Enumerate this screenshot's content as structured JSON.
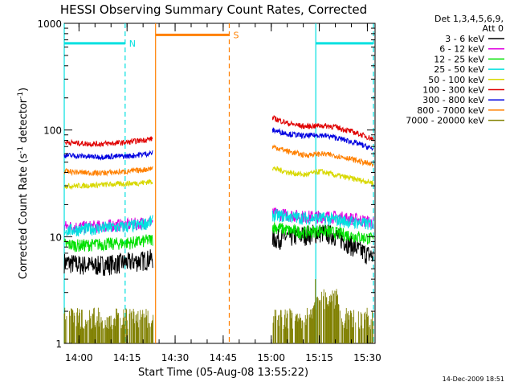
{
  "chart_data": {
    "type": "line",
    "title": "HESSI Observing Summary Count Rates, Corrected",
    "xlabel": "Start Time (05-Aug-08 13:55:22)",
    "ylabel_main": "Corrected Count Rate (s",
    "ylabel_sup1": "-1",
    "ylabel_mid": " detector",
    "ylabel_sup2": "-1",
    "ylabel_end": ")",
    "yscale": "log",
    "ylim": [
      1,
      1000
    ],
    "xlim_minutes": [
      0,
      97
    ],
    "x_ticks": [
      {
        "label": "14:00",
        "minute": 4.6
      },
      {
        "label": "14:15",
        "minute": 19.6
      },
      {
        "label": "14:30",
        "minute": 34.6
      },
      {
        "label": "14:45",
        "minute": 49.6
      },
      {
        "label": "15:00",
        "minute": 64.6
      },
      {
        "label": "15:15",
        "minute": 79.6
      },
      {
        "label": "15:30",
        "minute": 94.6
      }
    ],
    "y_ticks": [
      {
        "label": "1",
        "value": 1
      },
      {
        "label": "10",
        "value": 10
      },
      {
        "label": "100",
        "value": 100
      },
      {
        "label": "1000",
        "value": 1000
      }
    ],
    "legend_header": [
      "Det 1,3,4,5,6,9,",
      "Att 0"
    ],
    "legend_position": "right",
    "series": [
      {
        "name": "3 - 6 keV",
        "color": "#000000",
        "x": [
          0,
          5,
          10,
          15,
          20,
          24,
          27.5,
          65,
          70,
          75,
          80,
          84,
          88,
          92,
          96.5
        ],
        "y": [
          5.8,
          5.5,
          5.4,
          5.6,
          5.8,
          6.0,
          6.3,
          9.5,
          10.0,
          10.5,
          11.0,
          10.5,
          9.0,
          7.5,
          6.5
        ]
      },
      {
        "name": "6 - 12 keV",
        "color": "#e000e0",
        "x": [
          0,
          5,
          10,
          15,
          20,
          24,
          27.5,
          65,
          70,
          75,
          80,
          84,
          88,
          92,
          96.5
        ],
        "y": [
          12.5,
          12.3,
          12.5,
          12.8,
          13.0,
          13.5,
          14.0,
          16.5,
          16.0,
          15.5,
          15.5,
          15.5,
          15.0,
          14.5,
          13.5
        ]
      },
      {
        "name": "12 - 25 keV",
        "color": "#00e000",
        "x": [
          0,
          5,
          10,
          15,
          20,
          24,
          27.5,
          65,
          70,
          75,
          80,
          84,
          88,
          92,
          96.5
        ],
        "y": [
          8.5,
          8.3,
          8.5,
          8.6,
          8.8,
          9.0,
          9.5,
          12.5,
          11.5,
          11.0,
          11.5,
          11.0,
          10.5,
          10.0,
          9.5
        ]
      },
      {
        "name": "25 - 50 keV",
        "color": "#00e0e0",
        "x": [
          0,
          5,
          10,
          15,
          20,
          24,
          27.5,
          65,
          70,
          75,
          80,
          84,
          88,
          92,
          96.5
        ],
        "y": [
          11.5,
          11.7,
          12.0,
          12.2,
          12.5,
          13.0,
          14.0,
          16.0,
          15.5,
          15.0,
          15.0,
          14.5,
          14.0,
          13.5,
          13.0
        ]
      },
      {
        "name": "50 - 100 keV",
        "color": "#d8d800",
        "x": [
          0,
          5,
          10,
          15,
          20,
          24,
          27.5,
          65,
          70,
          75,
          80,
          84,
          88,
          92,
          96.5
        ],
        "y": [
          30.0,
          30.0,
          30.5,
          31.0,
          31.5,
          32.0,
          33.0,
          44.0,
          40.0,
          38.0,
          41.0,
          38.0,
          36.0,
          34.0,
          32.0
        ]
      },
      {
        "name": "100 - 300 keV",
        "color": "#e00000",
        "x": [
          0,
          5,
          10,
          15,
          20,
          24,
          27.5,
          65,
          70,
          75,
          80,
          84,
          88,
          92,
          96.5
        ],
        "y": [
          77.0,
          75.0,
          74.0,
          75.0,
          77.0,
          80.0,
          83.0,
          130.0,
          115.0,
          108.0,
          110.0,
          108.0,
          100.0,
          92.0,
          82.0
        ]
      },
      {
        "name": "300 - 800 keV",
        "color": "#0000e0",
        "x": [
          0,
          5,
          10,
          15,
          20,
          24,
          27.5,
          65,
          70,
          75,
          80,
          84,
          88,
          92,
          96.5
        ],
        "y": [
          58.0,
          57.0,
          56.0,
          56.5,
          57.0,
          59.0,
          61.0,
          100.0,
          92.0,
          88.0,
          90.0,
          86.0,
          80.0,
          74.0,
          66.0
        ]
      },
      {
        "name": "800 - 7000 keV",
        "color": "#ff8000",
        "x": [
          0,
          5,
          10,
          15,
          20,
          24,
          27.5,
          65,
          70,
          75,
          80,
          84,
          88,
          92,
          96.5
        ],
        "y": [
          41.0,
          40.0,
          39.5,
          40.0,
          41.0,
          42.0,
          44.0,
          70.0,
          63.0,
          58.0,
          60.0,
          58.0,
          55.0,
          51.0,
          47.0
        ]
      },
      {
        "name": "7000 - 20000 keV",
        "color": "#808000",
        "x": [
          0,
          27.5,
          65,
          77,
          78,
          85,
          86,
          96.5
        ],
        "y": [
          1.6,
          1.6,
          1.6,
          1.6,
          2.4,
          2.4,
          1.6,
          1.6
        ]
      }
    ],
    "annotations": [
      {
        "label": "N",
        "color": "#00e0e0",
        "x_start": 0,
        "x_end": 19,
        "level": 650
      },
      {
        "label": "S",
        "color": "#ff8000",
        "x_start": 28.5,
        "x_end": 51.5,
        "level": 780
      },
      {
        "label": "",
        "color": "#00e0e0",
        "x_start": 78.5,
        "x_end": 96.5,
        "level": 650
      }
    ],
    "vertical_lines": [
      {
        "minute": 0,
        "color": "#00e0e0",
        "style": "solid"
      },
      {
        "minute": 19,
        "color": "#00e0e0",
        "style": "dashed"
      },
      {
        "minute": 28.5,
        "color": "#ff8000",
        "style": "solid"
      },
      {
        "minute": 51.5,
        "color": "#ff8000",
        "style": "dashed"
      },
      {
        "minute": 78.5,
        "color": "#00e0e0",
        "style": "solid"
      },
      {
        "minute": 96.5,
        "color": "#00e0e0",
        "style": "dashed"
      }
    ],
    "gap_minutes": [
      28.5,
      65
    ]
  },
  "footer": {
    "date": "14-Dec-2009 18:51"
  }
}
